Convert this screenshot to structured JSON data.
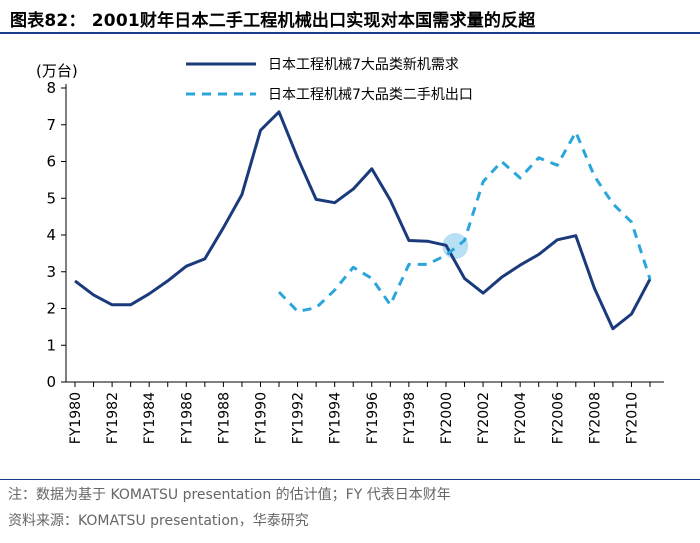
{
  "header": {
    "title": "图表82： 2001财年日本二手工程机械出口实现对本国需求量的反超"
  },
  "footer": {
    "note": "注：数据为基于 KOMATSU presentation 的估计值；FY 代表日本财年",
    "source": "资料来源：KOMATSU presentation，华泰研究"
  },
  "colors": {
    "series_new": "#1a3a7c",
    "series_used": "#2aa6dd",
    "highlight": "#9fd6f2",
    "rule": "#1a3a8a"
  },
  "chart_data": {
    "type": "line",
    "title": "2001财年日本二手工程机械出口实现对本国需求量的反超",
    "ylabel": "(万台)",
    "xlabel": "",
    "ylim": [
      0,
      8
    ],
    "yticks": [
      0,
      1,
      2,
      3,
      4,
      5,
      6,
      7,
      8
    ],
    "x": [
      1980,
      1981,
      1982,
      1983,
      1984,
      1985,
      1986,
      1987,
      1988,
      1989,
      1990,
      1991,
      1992,
      1993,
      1994,
      1995,
      1996,
      1997,
      1998,
      1999,
      2000,
      2001,
      2002,
      2003,
      2004,
      2005,
      2006,
      2007,
      2008,
      2009,
      2010,
      2011
    ],
    "xtick_labels": [
      "FY1980",
      "FY1982",
      "FY1984",
      "FY1986",
      "FY1988",
      "FY1990",
      "FY1992",
      "FY1994",
      "FY1996",
      "FY1998",
      "FY2000",
      "FY2002",
      "FY2004",
      "FY2006",
      "FY2008",
      "FY2010"
    ],
    "xtick_years": [
      1980,
      1982,
      1984,
      1986,
      1988,
      1990,
      1992,
      1994,
      1996,
      1998,
      2000,
      2002,
      2004,
      2006,
      2008,
      2010
    ],
    "legend_position": "top",
    "series": [
      {
        "name": "日本工程机械7大品类新机需求",
        "style": "solid",
        "values": [
          2.75,
          2.37,
          2.1,
          2.1,
          2.4,
          2.75,
          3.15,
          3.35,
          4.2,
          5.1,
          6.85,
          7.35,
          6.1,
          4.97,
          4.88,
          5.25,
          5.8,
          4.95,
          3.85,
          3.83,
          3.72,
          2.82,
          2.42,
          2.85,
          3.18,
          3.47,
          3.87,
          3.98,
          2.55,
          1.45,
          1.85,
          2.8
        ]
      },
      {
        "name": "日本工程机械7大品类二手机出口",
        "style": "dashed",
        "values": [
          null,
          null,
          null,
          null,
          null,
          null,
          null,
          null,
          null,
          null,
          null,
          2.45,
          1.92,
          2.02,
          2.5,
          3.12,
          2.82,
          2.1,
          3.2,
          3.2,
          3.45,
          3.85,
          5.45,
          6.0,
          5.55,
          6.1,
          5.9,
          6.8,
          5.6,
          4.85,
          4.35,
          2.8
        ]
      }
    ],
    "annotations": [
      {
        "type": "highlight-circle",
        "x": 2000.5,
        "y": 3.7,
        "meaning": "crossover point"
      }
    ]
  }
}
